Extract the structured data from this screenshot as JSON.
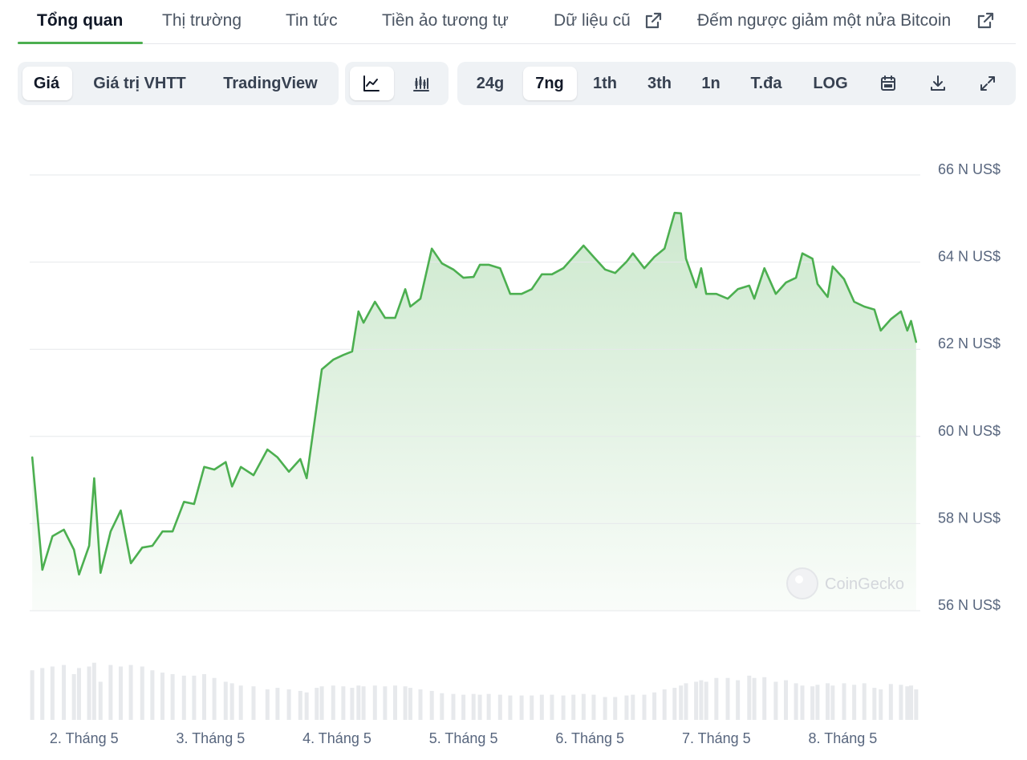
{
  "nav": {
    "tabs": [
      "Tổng quan",
      "Thị trường",
      "Tin tức",
      "Tiền ảo tương tự",
      "Dữ liệu cũ",
      "Đếm ngược giảm một nửa Bitcoin"
    ]
  },
  "toolbar": {
    "views": [
      "Giá",
      "Giá trị VHTT",
      "TradingView"
    ],
    "ranges": [
      "24g",
      "7ng",
      "1th",
      "3th",
      "1n",
      "T.đa",
      "LOG"
    ]
  },
  "chart_data": {
    "type": "line",
    "color": "#4caf50",
    "volume_color": "#e7e9ec",
    "watermark": "CoinGecko",
    "xlim": [
      1.57,
      8.6
    ],
    "xticks": [
      {
        "value": 2,
        "label": "2. Tháng 5"
      },
      {
        "value": 3,
        "label": "3. Tháng 5"
      },
      {
        "value": 4,
        "label": "4. Tháng 5"
      },
      {
        "value": 5,
        "label": "5. Tháng 5"
      },
      {
        "value": 6,
        "label": "6. Tháng 5"
      },
      {
        "value": 7,
        "label": "7. Tháng 5"
      },
      {
        "value": 8,
        "label": "8. Tháng 5"
      }
    ],
    "ylim": [
      56,
      66
    ],
    "yticks": [
      {
        "value": 66,
        "label": "66 N US$"
      },
      {
        "value": 64,
        "label": "64 N US$"
      },
      {
        "value": 62,
        "label": "62 N US$"
      },
      {
        "value": 60,
        "label": "60 N US$"
      },
      {
        "value": 58,
        "label": "58 N US$"
      },
      {
        "value": 56,
        "label": "56 N US$"
      }
    ],
    "grid": true,
    "x": [
      1.59,
      1.67,
      1.75,
      1.84,
      1.92,
      1.96,
      2.04,
      2.08,
      2.13,
      2.21,
      2.29,
      2.37,
      2.46,
      2.54,
      2.62,
      2.7,
      2.79,
      2.87,
      2.95,
      3.03,
      3.12,
      3.17,
      3.24,
      3.34,
      3.45,
      3.53,
      3.62,
      3.71,
      3.76,
      3.84,
      3.88,
      3.97,
      4.05,
      4.12,
      4.17,
      4.21,
      4.3,
      4.38,
      4.46,
      4.54,
      4.58,
      4.66,
      4.75,
      4.83,
      4.92,
      5.0,
      5.08,
      5.13,
      5.2,
      5.29,
      5.37,
      5.46,
      5.54,
      5.62,
      5.7,
      5.79,
      5.87,
      5.95,
      6.03,
      6.12,
      6.2,
      6.29,
      6.34,
      6.43,
      6.51,
      6.59,
      6.67,
      6.72,
      6.76,
      6.84,
      6.88,
      6.92,
      7.0,
      7.09,
      7.17,
      7.26,
      7.3,
      7.38,
      7.47,
      7.55,
      7.63,
      7.68,
      7.76,
      7.8,
      7.88,
      7.92,
      8.01,
      8.09,
      8.17,
      8.25,
      8.3,
      8.38,
      8.46,
      8.51,
      8.54,
      8.58
    ],
    "values": [
      59.52,
      56.94,
      57.71,
      57.86,
      57.4,
      56.83,
      57.49,
      59.04,
      56.87,
      57.82,
      58.3,
      57.09,
      57.45,
      57.49,
      57.82,
      57.82,
      58.5,
      58.45,
      59.3,
      59.24,
      59.41,
      58.85,
      59.3,
      59.11,
      59.7,
      59.52,
      59.19,
      59.48,
      59.04,
      60.71,
      61.54,
      61.76,
      61.87,
      61.95,
      62.87,
      62.61,
      63.09,
      62.72,
      62.72,
      63.38,
      62.98,
      63.16,
      64.31,
      63.97,
      63.83,
      63.64,
      63.66,
      63.94,
      63.94,
      63.86,
      63.27,
      63.27,
      63.38,
      63.72,
      63.72,
      63.86,
      64.12,
      64.38,
      64.12,
      63.83,
      63.75,
      64.01,
      64.2,
      63.86,
      64.12,
      64.31,
      65.13,
      65.12,
      64.08,
      63.42,
      63.86,
      63.27,
      63.27,
      63.16,
      63.38,
      63.46,
      63.16,
      63.86,
      63.27,
      63.53,
      63.64,
      64.2,
      64.08,
      63.5,
      63.2,
      63.9,
      63.61,
      63.09,
      62.98,
      62.91,
      62.43,
      62.69,
      62.87,
      62.43,
      62.65,
      62.17
    ],
    "volumes": [
      65,
      68,
      70,
      72,
      60,
      68,
      70,
      75,
      50,
      72,
      70,
      72,
      70,
      65,
      62,
      60,
      58,
      58,
      60,
      55,
      50,
      48,
      45,
      44,
      40,
      42,
      40,
      38,
      36,
      42,
      44,
      45,
      44,
      42,
      45,
      44,
      45,
      44,
      45,
      44,
      42,
      40,
      38,
      35,
      34,
      33,
      34,
      33,
      34,
      33,
      32,
      32,
      32,
      33,
      33,
      32,
      33,
      34,
      33,
      30,
      30,
      32,
      33,
      33,
      36,
      40,
      42,
      45,
      48,
      50,
      52,
      50,
      55,
      55,
      52,
      58,
      55,
      56,
      50,
      52,
      48,
      45,
      44,
      46,
      48,
      45,
      48,
      46,
      48,
      42,
      40,
      47,
      46,
      44,
      45,
      40
    ]
  }
}
